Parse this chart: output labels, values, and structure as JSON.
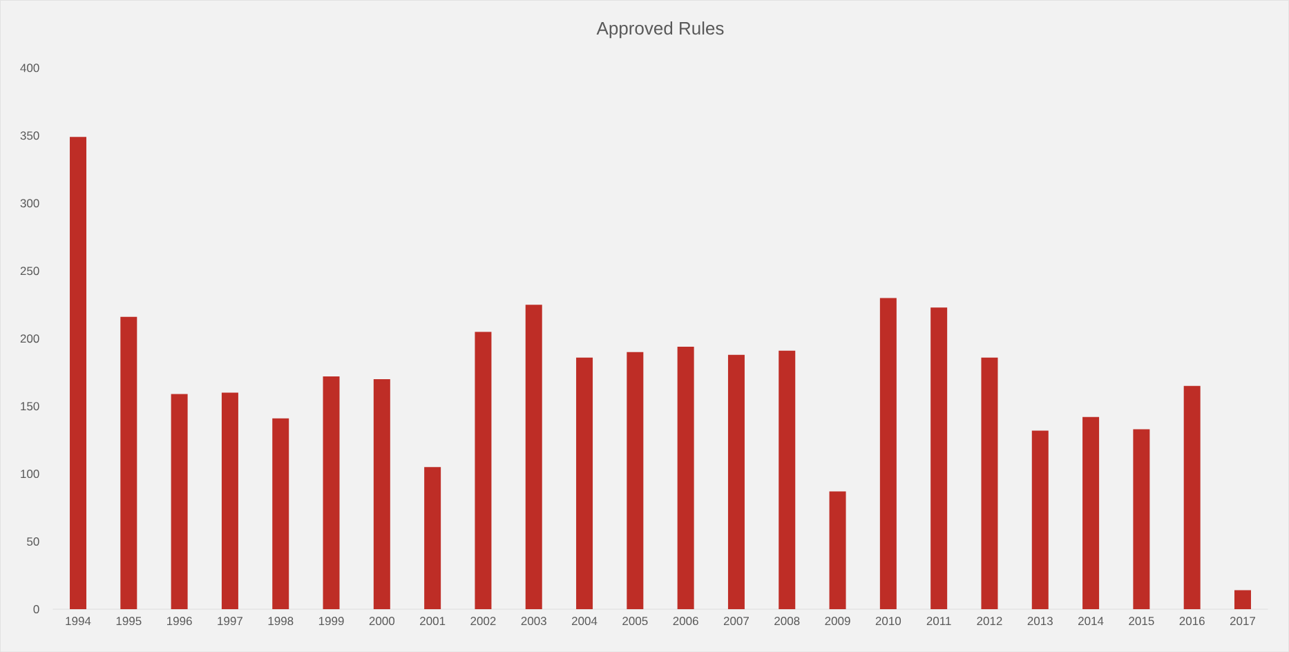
{
  "chart_data": {
    "type": "bar",
    "title": "Approved Rules",
    "categories": [
      "1994",
      "1995",
      "1996",
      "1997",
      "1998",
      "1999",
      "2000",
      "2001",
      "2002",
      "2003",
      "2004",
      "2005",
      "2006",
      "2007",
      "2008",
      "2009",
      "2010",
      "2011",
      "2012",
      "2013",
      "2014",
      "2015",
      "2016",
      "2017"
    ],
    "values": [
      349,
      216,
      159,
      160,
      141,
      172,
      170,
      105,
      205,
      225,
      186,
      190,
      194,
      188,
      191,
      87,
      230,
      223,
      186,
      132,
      142,
      133,
      165,
      14
    ],
    "color": "#be2d26",
    "ylim": [
      0,
      400
    ],
    "yticks": [
      0,
      50,
      100,
      150,
      200,
      250,
      300,
      350,
      400
    ],
    "grid": false
  }
}
